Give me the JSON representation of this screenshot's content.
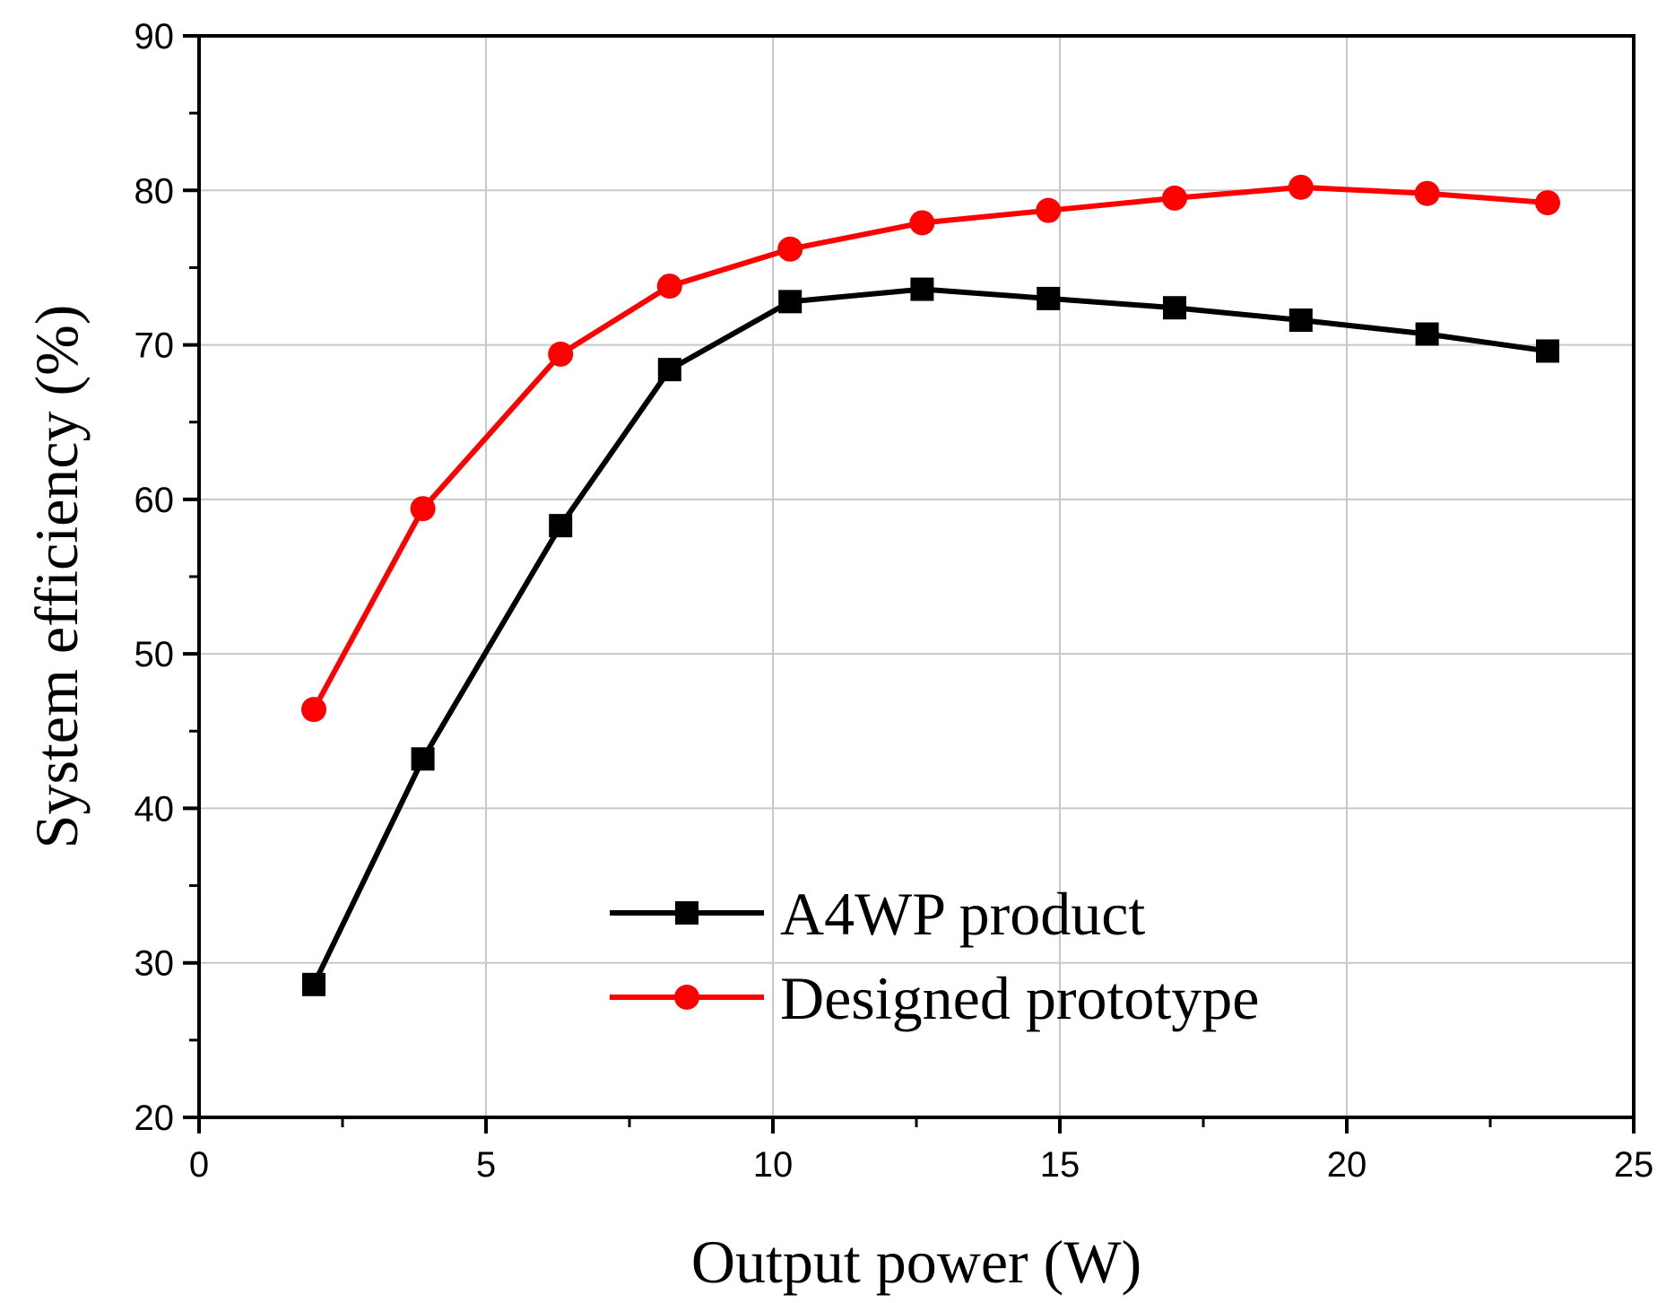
{
  "chart_data": {
    "type": "line",
    "title": "",
    "xlabel": "Output power (W)",
    "ylabel": "System efficiency (%)",
    "xlim": [
      0,
      25
    ],
    "ylim": [
      20,
      90
    ],
    "xticks": [
      0,
      5,
      10,
      15,
      20,
      25
    ],
    "xtick_labels": [
      "0",
      "5",
      "10",
      "15",
      "20",
      "25"
    ],
    "yticks": [
      20,
      30,
      40,
      50,
      60,
      70,
      80,
      90
    ],
    "ytick_labels": [
      "20",
      "30",
      "40",
      "50",
      "60",
      "70",
      "80",
      "90"
    ],
    "grid": true,
    "legend_position": "bottom-center",
    "series": [
      {
        "name": "A4WP product",
        "color": "#000000",
        "marker": "square",
        "x": [
          2.0,
          3.9,
          6.3,
          8.2,
          10.3,
          12.6,
          14.8,
          17.0,
          19.2,
          21.4,
          23.5
        ],
        "y": [
          28.6,
          43.2,
          58.3,
          68.4,
          72.8,
          73.6,
          73.0,
          72.4,
          71.6,
          70.7,
          69.6
        ]
      },
      {
        "name": "Designed prototype",
        "color": "#ff0000",
        "marker": "circle",
        "x": [
          2.0,
          3.9,
          6.3,
          8.2,
          10.3,
          12.6,
          14.8,
          17.0,
          19.2,
          21.4,
          23.5
        ],
        "y": [
          46.4,
          59.4,
          69.4,
          73.8,
          76.2,
          77.9,
          78.7,
          79.5,
          80.2,
          79.8,
          79.2
        ]
      }
    ]
  }
}
